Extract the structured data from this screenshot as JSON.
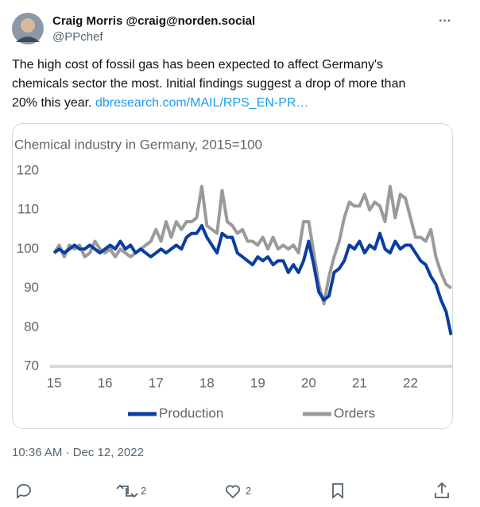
{
  "author": {
    "name": "Craig Morris @craig@norden.social",
    "handle": "@PPchef"
  },
  "menu": "···",
  "text": "The high cost of fossil gas has been expected to affect Germany's chemicals sector the most. Initial findings suggest a drop of more than 20% this year.",
  "link": "dbresearch.com/MAIL/RPS_EN-PR…",
  "timestamp": "10:36 AM · Dec 12, 2022",
  "actions": {
    "reposts": 2,
    "likes": 2
  },
  "chart_data": {
    "type": "line",
    "title": "Chemical industry in Germany, 2015=100",
    "x": [
      15.0,
      15.1,
      15.2,
      15.3,
      15.4,
      15.5,
      15.6,
      15.7,
      15.8,
      15.9,
      16.0,
      16.1,
      16.2,
      16.3,
      16.4,
      16.5,
      16.6,
      16.7,
      16.8,
      16.9,
      17.0,
      17.1,
      17.2,
      17.3,
      17.4,
      17.5,
      17.6,
      17.7,
      17.8,
      17.9,
      18.0,
      18.1,
      18.2,
      18.3,
      18.4,
      18.5,
      18.6,
      18.7,
      18.8,
      18.9,
      19.0,
      19.1,
      19.2,
      19.3,
      19.4,
      19.5,
      19.6,
      19.7,
      19.8,
      19.9,
      20.0,
      20.1,
      20.2,
      20.3,
      20.4,
      20.5,
      20.6,
      20.7,
      20.8,
      20.9,
      21.0,
      21.1,
      21.2,
      21.3,
      21.4,
      21.5,
      21.6,
      21.7,
      21.8,
      21.9,
      22.0,
      22.1,
      22.2,
      22.3,
      22.4,
      22.5,
      22.6,
      22.7,
      22.8
    ],
    "series": [
      {
        "name": "Production",
        "color": "#0a3ea0",
        "values": [
          99,
          100,
          99,
          100,
          101,
          100,
          100,
          101,
          100,
          99,
          100,
          101,
          100,
          102,
          100,
          101,
          99,
          100,
          99,
          98,
          99,
          100,
          99,
          100,
          101,
          100,
          103,
          104,
          104,
          106,
          103,
          101,
          99,
          104,
          103,
          103,
          99,
          98,
          97,
          96,
          98,
          97,
          98,
          96,
          97,
          97,
          94,
          96,
          94,
          97,
          102,
          96,
          89,
          87,
          88,
          94,
          95,
          97,
          101,
          100,
          102,
          99,
          101,
          100,
          104,
          100,
          99,
          102,
          100,
          101,
          101,
          99,
          97,
          96,
          93,
          91,
          87,
          84,
          78
        ]
      },
      {
        "name": "Orders",
        "color": "#9a9a9a",
        "values": [
          99,
          101,
          98,
          101,
          100,
          101,
          98,
          99,
          102,
          100,
          99,
          100,
          98,
          100,
          99,
          98,
          99,
          100,
          101,
          102,
          105,
          102,
          107,
          103,
          107,
          105,
          107,
          107,
          108,
          116,
          106,
          105,
          104,
          115,
          107,
          106,
          104,
          105,
          102,
          102,
          101,
          103,
          100,
          103,
          100,
          101,
          100,
          101,
          99,
          107,
          107,
          99,
          91,
          86,
          93,
          98,
          102,
          108,
          112,
          111,
          111,
          114,
          110,
          112,
          111,
          107,
          116,
          108,
          114,
          113,
          108,
          103,
          103,
          102,
          105,
          98,
          94,
          91,
          90
        ]
      }
    ],
    "xlim": [
      14.92,
      22.82
    ],
    "xticks": [
      15,
      16,
      17,
      18,
      19,
      20,
      21,
      22
    ],
    "ylim": [
      70,
      120
    ],
    "yticks": [
      70,
      80,
      90,
      100,
      110,
      120
    ],
    "grid": false,
    "legend": "bottom"
  }
}
